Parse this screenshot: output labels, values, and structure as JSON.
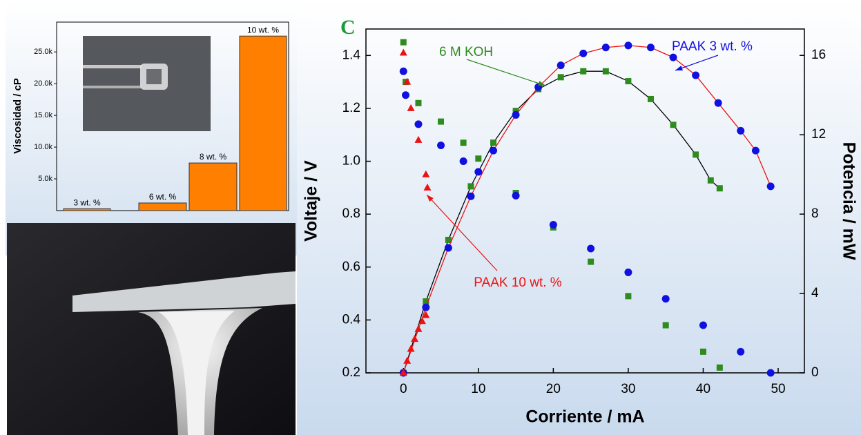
{
  "chart_data": [
    {
      "type": "bar",
      "y_label": "Viscosidad / cP",
      "categories": [
        "3 wt. %",
        "6 wt. %",
        "8 wt. %",
        "10 wt. %"
      ],
      "values": [
        300,
        1200,
        7500,
        27500
      ],
      "color": "#ff8000",
      "ylim": [
        0,
        29700
      ],
      "yticks": [
        {
          "value": 5000,
          "label": "5.0k"
        },
        {
          "value": 10000,
          "label": "10.0k"
        },
        {
          "value": 15000,
          "label": "15.0k"
        },
        {
          "value": 20000,
          "label": "20.0k"
        },
        {
          "value": 25000,
          "label": "25.0k"
        }
      ]
    },
    {
      "type": "scatter",
      "title": "C",
      "x_label": "Corriente / mA",
      "y_label": "Voltaje / V",
      "y2_label": "Potencia / mW",
      "xlim": [
        -5,
        53.5
      ],
      "xticks": [
        0,
        10,
        20,
        30,
        40,
        50
      ],
      "ylim": [
        0.2,
        1.5
      ],
      "yticks": [
        0.2,
        0.4,
        0.6,
        0.8,
        {
          "value": 1,
          "label": "1.0"
        },
        1.2,
        1.4
      ],
      "y2lim": [
        0,
        17.33
      ],
      "y2ticks": [
        0,
        4,
        8,
        12,
        16
      ],
      "series": [
        {
          "name": "6 M KOH",
          "color": "#2e8b1e",
          "marker": "square",
          "x": [
            0,
            0.3,
            2,
            5,
            8,
            10,
            15,
            20,
            25,
            30,
            35,
            40,
            42.2
          ],
          "values": [
            1.45,
            1.3,
            1.22,
            1.15,
            1.07,
            1.01,
            0.88,
            0.75,
            0.62,
            0.49,
            0.38,
            0.28,
            0.22
          ]
        },
        {
          "name": "PAAK 3 wt. %",
          "color": "#1010e0",
          "marker": "circle",
          "x": [
            0,
            0.3,
            2,
            5,
            8,
            10,
            15,
            20,
            25,
            30,
            35,
            40,
            45,
            49
          ],
          "values": [
            1.34,
            1.25,
            1.14,
            1.06,
            1.0,
            0.96,
            0.87,
            0.76,
            0.67,
            0.58,
            0.48,
            0.38,
            0.28,
            0.2
          ]
        },
        {
          "name": "PAAK 10 wt. %",
          "color": "#ee1111",
          "marker": "triangle",
          "x": [
            0,
            0.5,
            1,
            2,
            3,
            3.2
          ],
          "values": [
            1.41,
            1.3,
            1.2,
            1.08,
            0.95,
            0.9
          ]
        }
      ],
      "y2_series": [
        {
          "axis": "y2",
          "color": "#2e8b1e",
          "line_color": "#000000",
          "marker": "square",
          "x": [
            0,
            3,
            6,
            9,
            12,
            15,
            18,
            21,
            24,
            27,
            30,
            33,
            36,
            39,
            41,
            42.2
          ],
          "values": [
            0,
            3.6,
            6.7,
            9.4,
            11.6,
            13.2,
            14.3,
            14.9,
            15.2,
            15.2,
            14.7,
            13.8,
            12.5,
            11.0,
            9.7,
            9.3
          ]
        },
        {
          "axis": "y2",
          "color": "#1010e0",
          "line_color": "#ee1111",
          "marker": "circle",
          "x": [
            0,
            3,
            6,
            9,
            12,
            15,
            18,
            21,
            24,
            27,
            30,
            33,
            36,
            39,
            42,
            45,
            47,
            49
          ],
          "values": [
            0,
            3.3,
            6.3,
            8.9,
            11.2,
            13.0,
            14.4,
            15.5,
            16.1,
            16.4,
            16.5,
            16.4,
            15.9,
            15.0,
            13.6,
            12.2,
            11.2,
            9.4
          ]
        },
        {
          "axis": "y2",
          "color": "#ee1111",
          "line_color": "#ee1111",
          "marker": "triangle",
          "x": [
            0,
            0.5,
            1,
            1.5,
            2,
            2.5,
            3
          ],
          "values": [
            0,
            0.6,
            1.2,
            1.7,
            2.2,
            2.6,
            2.9
          ]
        }
      ]
    }
  ]
}
